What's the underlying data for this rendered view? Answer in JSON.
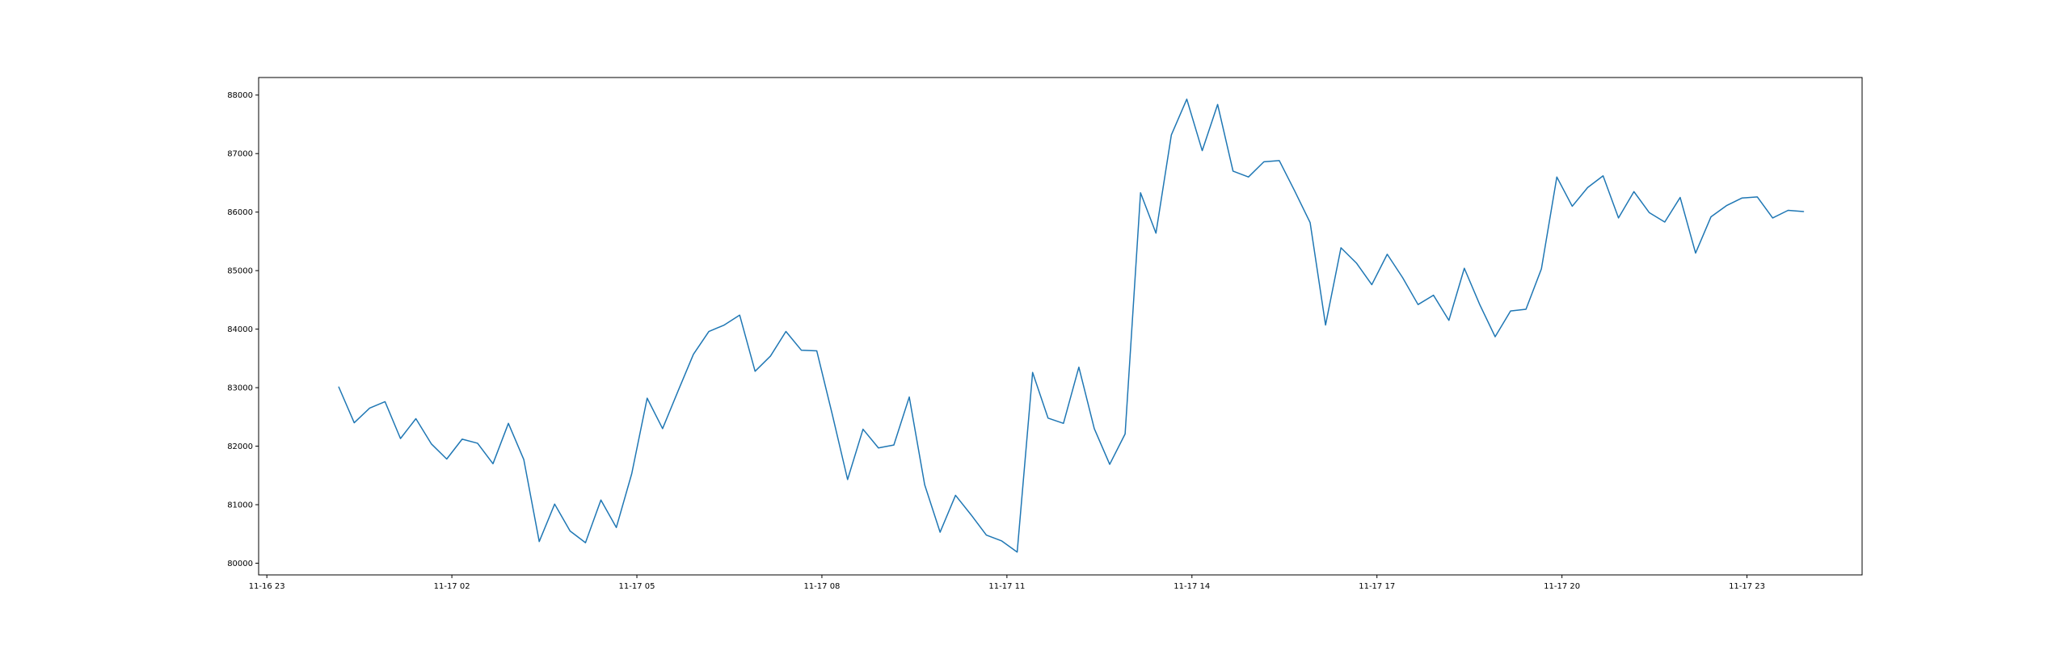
{
  "chart_data": {
    "type": "line",
    "title": "",
    "xlabel": "",
    "ylabel": "",
    "grid": false,
    "legend": "none",
    "line_color": "#1f77b4",
    "x_start": "2024-11-16 23:00",
    "x_step_minutes": 15,
    "xlim": [
      "2024-11-16 22:52",
      "2024-11-18 00:52"
    ],
    "ylim": [
      79800,
      88300
    ],
    "xticks": [
      "11-16 23",
      "11-17 02",
      "11-17 05",
      "11-17 08",
      "11-17 11",
      "11-17 14",
      "11-17 17",
      "11-17 20",
      "11-17 23"
    ],
    "yticks": [
      "80000",
      "81000",
      "82000",
      "83000",
      "84000",
      "85000",
      "86000",
      "87000",
      "88000"
    ],
    "series": [
      {
        "x": [
          "2024-11-17 00:10",
          "2024-11-17 00:25",
          "2024-11-17 00:40",
          "2024-11-17 00:55",
          "2024-11-17 01:10",
          "2024-11-17 01:25",
          "2024-11-17 01:40",
          "2024-11-17 01:55",
          "2024-11-17 02:10",
          "2024-11-17 02:25",
          "2024-11-17 02:40",
          "2024-11-17 02:55",
          "2024-11-17 03:10",
          "2024-11-17 03:25",
          "2024-11-17 03:40",
          "2024-11-17 03:55",
          "2024-11-17 04:10",
          "2024-11-17 04:25",
          "2024-11-17 04:40",
          "2024-11-17 04:55",
          "2024-11-17 05:10",
          "2024-11-17 05:25",
          "2024-11-17 05:40",
          "2024-11-17 05:55",
          "2024-11-17 06:10",
          "2024-11-17 06:25",
          "2024-11-17 06:40",
          "2024-11-17 06:55",
          "2024-11-17 07:10",
          "2024-11-17 07:25",
          "2024-11-17 07:40",
          "2024-11-17 07:55",
          "2024-11-17 08:10",
          "2024-11-17 08:25",
          "2024-11-17 08:40",
          "2024-11-17 08:55",
          "2024-11-17 09:10",
          "2024-11-17 09:25",
          "2024-11-17 09:40",
          "2024-11-17 09:55",
          "2024-11-17 10:10",
          "2024-11-17 10:25",
          "2024-11-17 10:40",
          "2024-11-17 10:55",
          "2024-11-17 11:10",
          "2024-11-17 11:25",
          "2024-11-17 11:40",
          "2024-11-17 11:55",
          "2024-11-17 12:10",
          "2024-11-17 12:25",
          "2024-11-17 12:40",
          "2024-11-17 12:55",
          "2024-11-17 13:10",
          "2024-11-17 13:25",
          "2024-11-17 13:40",
          "2024-11-17 13:55",
          "2024-11-17 14:10",
          "2024-11-17 14:25",
          "2024-11-17 14:40",
          "2024-11-17 14:55",
          "2024-11-17 15:10",
          "2024-11-17 15:25",
          "2024-11-17 15:40",
          "2024-11-17 15:55",
          "2024-11-17 16:10",
          "2024-11-17 16:25",
          "2024-11-17 16:40",
          "2024-11-17 16:55",
          "2024-11-17 17:10",
          "2024-11-17 17:25",
          "2024-11-17 17:40",
          "2024-11-17 17:55",
          "2024-11-17 18:10",
          "2024-11-17 18:25",
          "2024-11-17 18:40",
          "2024-11-17 18:55",
          "2024-11-17 19:10",
          "2024-11-17 19:25",
          "2024-11-17 19:40",
          "2024-11-17 19:55",
          "2024-11-17 20:10",
          "2024-11-17 20:25",
          "2024-11-17 20:40",
          "2024-11-17 20:55",
          "2024-11-17 21:10",
          "2024-11-17 21:25",
          "2024-11-17 21:40",
          "2024-11-17 21:55",
          "2024-11-17 22:10",
          "2024-11-17 22:25",
          "2024-11-17 22:40",
          "2024-11-17 22:55",
          "2024-11-17 23:10",
          "2024-11-17 23:25",
          "2024-11-17 23:40",
          "2024-11-17 23:55"
        ],
        "values": [
          83010,
          82400,
          82650,
          82760,
          82130,
          82470,
          82040,
          81780,
          82120,
          82050,
          81700,
          82390,
          81770,
          80370,
          81010,
          80550,
          80350,
          81080,
          80610,
          81530,
          82820,
          82300,
          82940,
          83570,
          83960,
          84070,
          84240,
          83280,
          83540,
          83960,
          83640,
          83630,
          82550,
          81430,
          82290,
          81970,
          82020,
          82840,
          81340,
          80530,
          81160,
          80830,
          80480,
          80380,
          80190,
          83260,
          82480,
          82390,
          83350,
          82300,
          81690,
          82210,
          86330,
          85640,
          87320,
          87930,
          87050,
          87840,
          86700,
          86600,
          86860,
          86880,
          86360,
          85820,
          84070,
          85390,
          85130,
          84760,
          85280,
          84880,
          84420,
          84580,
          84150,
          85040,
          84420,
          83870,
          84310,
          84340,
          85030,
          86600,
          86100,
          86420,
          86620,
          85900,
          86350,
          85990,
          85830,
          86250,
          85300,
          85920,
          86110,
          86240,
          86260,
          85900,
          86030,
          86010
        ]
      }
    ]
  }
}
